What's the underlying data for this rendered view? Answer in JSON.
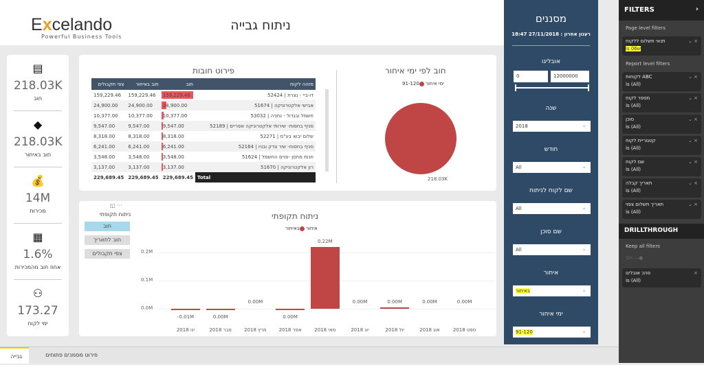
{
  "header": {
    "logo_prefix": "E",
    "logo_x": "x",
    "logo_rest": "celando",
    "tagline": "Powerful Business Tools",
    "title": "ניתוח גבייה"
  },
  "kpis": [
    {
      "icon": "ledger-icon",
      "value": "218.03K",
      "label": "חוב"
    },
    {
      "icon": "warning-icon",
      "value": "218.03K",
      "label": "חוב באיחור"
    },
    {
      "icon": "money-bag-icon",
      "value": "14M",
      "label": "מכירות"
    },
    {
      "icon": "presentation-chart-icon",
      "value": "1.6%",
      "label": "אחוז חוב מהמכירות"
    },
    {
      "icon": "users-icon",
      "value": "173.27",
      "label": "ימי לקוח"
    }
  ],
  "debt_table": {
    "title": "פירוט חובות",
    "columns": [
      "מזהה לקוח",
      "חוב",
      "חוב באיחור",
      "צפי תקבולים"
    ],
    "rows": [
      {
        "name": "דו-ביי - נצרת | 52424",
        "debt": "159,229.46",
        "late": "159,229.46",
        "forecast": "159,229.46",
        "share": 1.0
      },
      {
        "name": "אבישי אלקטרוניקה | 51674",
        "debt": "24,900.00",
        "late": "24,900.00",
        "forecast": "24,900.00",
        "share": 0.156
      },
      {
        "name": "חשמל ובגדול - נתניה | 53032",
        "debt": "10,377.00",
        "late": "10,377.00",
        "forecast": "10,377.00",
        "share": 0.065
      },
      {
        "name": "סניף בחסות- שירותי אלקטרוניקה אפריים | 52189",
        "debt": "9,547.00",
        "late": "9,547.00",
        "forecast": "9,547.00",
        "share": 0.06
      },
      {
        "name": "שלום יבוא בע\"מ | 52271",
        "debt": "8,318.00",
        "late": "8,318.00",
        "forecast": "8,318.00",
        "share": 0.052
      },
      {
        "name": "סניף בחסות- שיר צדק ובניו | 52164",
        "debt": "6,241.00",
        "late": "6,241.00",
        "forecast": "6,241.00",
        "share": 0.039
      },
      {
        "name": "חנות מחסן -פנים החשמל | 51624",
        "debt": "3,548.00",
        "late": "3,548.00",
        "forecast": "3,548.00",
        "share": 0.022
      },
      {
        "name": "רון אלקטרוניקה | 51670",
        "debt": "3,137.00",
        "late": "3,137.00",
        "forecast": "3,137.00",
        "share": 0.02
      }
    ],
    "total": {
      "label": "Total",
      "debt": "229,689.45",
      "late": "229,689.45",
      "forecast": "229,689.45"
    }
  },
  "chart_data": [
    {
      "type": "pie",
      "title": "חוב לפי ימי איחור",
      "legend_title": "ימי איחור",
      "categories": [
        "91-120"
      ],
      "values": [
        218.03
      ],
      "value_labels": [
        "218.03K"
      ],
      "color": "#c04545"
    },
    {
      "type": "bar",
      "title": "ניתוח תקופתי",
      "legend_title": "איחור",
      "legend": [
        "באיחור"
      ],
      "color": "#c04545",
      "categories": [
        "ינו 2018",
        "פבר 2018",
        "מרץ 2018",
        "אפר 2018",
        "מאי 2018",
        "יונ 2018",
        "יול 2018",
        "אוג 2018",
        "ספט 2018"
      ],
      "values": [
        -0.006,
        -0.001,
        0,
        -0.004,
        0.22,
        0,
        0.003,
        0,
        0
      ],
      "value_labels": [
        "-0.01M",
        "0.00M",
        "0.00M",
        "0.00M",
        "0.22M",
        "0.00M",
        "0.00M",
        "0.00M",
        "0.00M"
      ],
      "yticks": [
        "0.0M",
        "0.1M",
        "0.2M"
      ],
      "ylim": [
        -0.02,
        0.24
      ]
    }
  ],
  "segments": {
    "title": "ניתוח תקופתי",
    "items": [
      "חוב",
      "חוב לתאריך",
      "צפי תקבולים"
    ],
    "active": 0
  },
  "slicers": {
    "title": "מסננים",
    "refresh": "רענון אחרון : 27/11/2018 18:47",
    "range_label": "אובליגו",
    "range_min": "0",
    "range_max": "12000000",
    "dropdowns": [
      {
        "label": "שנה",
        "value": "2018"
      },
      {
        "label": "חודש",
        "value": "All"
      },
      {
        "label": "שם לקוח לניתוח",
        "value": "All"
      },
      {
        "label": "שם סוכן",
        "value": "All"
      },
      {
        "label": "איחור",
        "value": "באיחור",
        "highlight": true
      },
      {
        "label": "ימי איחור",
        "value": "91-120",
        "highlight": true
      }
    ]
  },
  "filters": {
    "title": "FILTERS",
    "page_level": "Page level filters",
    "page_filters": [
      {
        "name": "תנאי תשלום ללקוח",
        "value": "is 06ש"
      }
    ],
    "report_level": "Report level filters",
    "report_filters": [
      {
        "name": "ABC לקוחות",
        "value": "is (All)"
      },
      {
        "name": "מספר לקוח",
        "value": "is (All)"
      },
      {
        "name": "סוכן",
        "value": "is (All)"
      },
      {
        "name": "קטגוריית לקוח",
        "value": "is (All)"
      },
      {
        "name": "שם לקוח",
        "value": "is (All)"
      },
      {
        "name": "תאריך קבלה",
        "value": "is (All)"
      },
      {
        "name": "תאריך תשלום צפוי",
        "value": "is (All)"
      }
    ],
    "drillthrough": "DRILLTHROUGH",
    "keep_all": "Keep all filters",
    "toggle": "On",
    "drill_filter": {
      "name": "סהכ אובליגו",
      "value": "is (All)"
    }
  },
  "tabs": [
    {
      "label": "גבייה",
      "active": true
    },
    {
      "label": "פירוט מסמכים פתוחים",
      "active": false
    }
  ]
}
